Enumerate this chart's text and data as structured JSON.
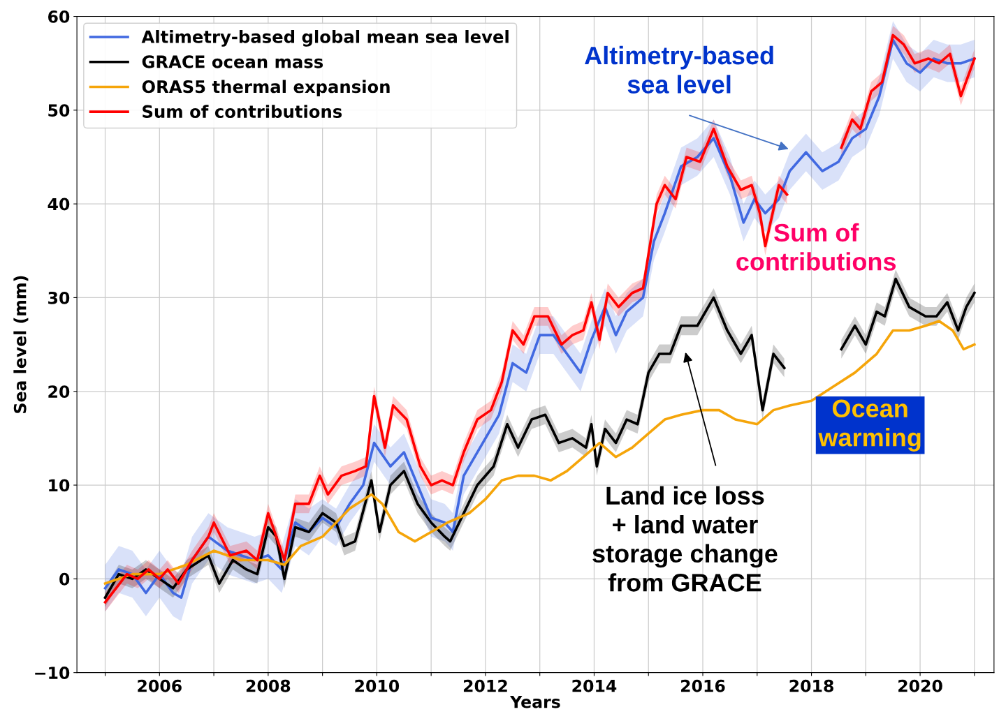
{
  "chart_data": {
    "type": "line",
    "xlabel": "Years",
    "ylabel": "Sea level (mm)",
    "xlim": [
      2004.48,
      2021.36
    ],
    "ylim": [
      -10,
      60
    ],
    "xticks": [
      {
        "value": 2005,
        "label": null
      },
      2006,
      {
        "value": 2007,
        "label": null
      },
      2008,
      {
        "value": 2009,
        "label": null
      },
      2010,
      {
        "value": 2011,
        "label": null
      },
      2012,
      {
        "value": 2013,
        "label": null
      },
      2014,
      {
        "value": 2015,
        "label": null
      },
      2016,
      {
        "value": 2017,
        "label": null
      },
      2018,
      {
        "value": 2019,
        "label": null
      },
      2020,
      {
        "value": 2021,
        "label": null
      }
    ],
    "yticks": [
      {
        "value": -10,
        "label": "−10"
      },
      0,
      10,
      20,
      30,
      40,
      50,
      60
    ],
    "grid": true,
    "legend": "top left",
    "marker": "none",
    "line_style": "solid",
    "series": [
      {
        "name": "Altimetry-based global mean sea level",
        "color": "#4169e1",
        "x": [
          2005.0,
          2005.25,
          2005.5,
          2005.75,
          2006.0,
          2006.25,
          2006.4,
          2006.6,
          2006.9,
          2007.25,
          2007.5,
          2007.75,
          2008.0,
          2008.25,
          2008.5,
          2008.75,
          2009.0,
          2009.25,
          2009.5,
          2009.75,
          2009.95,
          2010.25,
          2010.5,
          2010.75,
          2011.0,
          2011.25,
          2011.4,
          2011.6,
          2011.9,
          2012.25,
          2012.5,
          2012.75,
          2013.0,
          2013.25,
          2013.5,
          2013.75,
          2013.95,
          2014.2,
          2014.4,
          2014.6,
          2014.9,
          2015.1,
          2015.3,
          2015.6,
          2015.9,
          2016.2,
          2016.5,
          2016.75,
          2016.95,
          2017.15,
          2017.4,
          2017.6,
          2017.9,
          2018.2,
          2018.5,
          2018.75,
          2019.0,
          2019.25,
          2019.5,
          2019.75,
          2020.0,
          2020.25,
          2020.5,
          2020.75,
          2021.0
        ],
        "values": [
          -1,
          1,
          0.5,
          -1.5,
          0.5,
          -1.5,
          -2,
          2,
          4.5,
          3,
          2.5,
          2,
          2.5,
          1,
          6,
          5,
          6.5,
          5.5,
          8,
          10,
          14.5,
          12,
          13.5,
          10,
          6.5,
          6,
          5,
          11,
          14,
          17.5,
          23,
          22,
          26,
          26,
          24,
          22,
          25.5,
          29,
          26,
          28.5,
          30,
          36,
          39,
          44,
          45,
          47,
          43,
          38,
          40.5,
          39,
          40.5,
          43.5,
          45.5,
          43.5,
          44.5,
          47,
          48,
          51.5,
          57.5,
          55,
          54,
          55.5,
          55,
          55,
          55.5
        ],
        "lower": [
          -3.5,
          -1.5,
          -2,
          -4,
          -2,
          -4,
          -4.5,
          -0.5,
          2,
          0.5,
          0,
          -0.5,
          0,
          -1.5,
          3.5,
          2.5,
          4.5,
          3.5,
          6,
          8,
          12.5,
          10,
          11.5,
          8,
          4.5,
          4,
          3,
          9,
          12,
          15.5,
          21,
          20,
          24,
          24,
          22,
          20,
          23.5,
          27,
          24,
          26.5,
          28,
          34,
          37,
          42,
          43,
          45,
          41,
          36,
          38.5,
          37,
          38.5,
          41.5,
          43.5,
          41.5,
          42.5,
          45,
          46,
          49.5,
          55.5,
          53,
          52,
          53.5,
          53,
          53,
          53.5
        ],
        "upper": [
          1.5,
          3.5,
          3,
          1,
          3,
          1,
          0.5,
          4.5,
          7,
          5.5,
          5,
          4.5,
          5,
          3.5,
          8.5,
          7.5,
          8.5,
          7.5,
          10,
          12,
          16.5,
          14,
          15.5,
          12,
          8.5,
          8,
          7,
          13,
          16,
          19.5,
          25,
          24,
          28,
          28,
          26,
          24,
          27.5,
          31,
          28,
          30.5,
          32,
          38,
          41,
          46,
          47,
          49,
          45,
          40,
          42.5,
          41,
          42.5,
          45.5,
          47.5,
          45.5,
          46.5,
          49,
          50,
          53.5,
          59.5,
          57,
          56,
          57.5,
          57,
          57,
          57.5
        ]
      },
      {
        "name": "GRACE ocean mass",
        "color": "#000000",
        "x": [
          2005.0,
          2005.25,
          2005.5,
          2005.75,
          2006.0,
          2006.25,
          2006.5,
          2006.9,
          2007.1,
          2007.35,
          2007.6,
          2007.8,
          2008.0,
          2008.15,
          2008.3,
          2008.5,
          2008.75,
          2009.0,
          2009.25,
          2009.4,
          2009.6,
          2009.9,
          2010.05,
          2010.25,
          2010.5,
          2010.75,
          2011.0,
          2011.25,
          2011.35,
          2011.6,
          2011.85,
          2012.15,
          2012.4,
          2012.6,
          2012.85,
          2013.1,
          2013.35,
          2013.6,
          2013.85,
          2013.95,
          2014.05,
          2014.2,
          2014.4,
          2014.6,
          2014.8,
          2015.0,
          2015.2,
          2015.4,
          2015.6,
          2015.9,
          2016.2,
          2016.45,
          2016.7,
          2016.9,
          2017.1,
          2017.3,
          2017.5,
          2018.0,
          2018.55,
          2018.8,
          2019.0,
          2019.2,
          2019.35,
          2019.55,
          2019.8,
          2020.1,
          2020.3,
          2020.5,
          2020.7,
          2020.85,
          2021.0
        ],
        "values": [
          -2,
          0.5,
          0,
          1,
          0,
          -1,
          1,
          2.5,
          -0.5,
          2,
          1,
          0.5,
          5.5,
          4.5,
          0,
          5.5,
          5,
          7,
          6,
          3.5,
          4,
          10.5,
          5,
          10,
          11.5,
          8,
          6,
          4.5,
          4,
          7,
          10,
          12,
          16.5,
          14,
          17,
          17.5,
          14.5,
          15,
          14,
          16.5,
          12,
          16,
          14.5,
          17,
          16.5,
          22,
          24,
          24,
          27,
          27,
          30,
          26.5,
          24,
          26,
          18,
          24,
          22.5,
          null,
          24.5,
          27,
          25,
          28.5,
          28,
          32,
          29,
          28,
          28,
          29.5,
          26.5,
          29,
          30.5
        ],
        "lower": [
          -3,
          -0.5,
          -1,
          0,
          -1,
          -2,
          0,
          1.5,
          -1.5,
          1,
          0,
          -0.5,
          4.5,
          3.5,
          -1,
          4.5,
          4,
          6,
          5,
          2.5,
          3,
          9.5,
          4,
          9,
          10.5,
          7,
          5,
          3.5,
          3,
          6,
          9,
          11,
          15.5,
          13,
          16,
          16.5,
          13.5,
          14,
          13,
          15.5,
          11,
          15,
          13.5,
          16,
          15.5,
          21,
          23,
          23,
          26,
          26,
          29,
          25.5,
          23,
          25,
          17,
          23,
          21.5,
          null,
          23.5,
          26,
          24,
          27.5,
          27,
          31,
          28,
          27,
          27,
          28.5,
          25.5,
          28,
          29.5
        ],
        "upper": [
          -1,
          1.5,
          1,
          2,
          1,
          0,
          2,
          3.5,
          0.5,
          3,
          2,
          1.5,
          6.5,
          5.5,
          1,
          6.5,
          6,
          8,
          7,
          4.5,
          5,
          11.5,
          6,
          11,
          12.5,
          9,
          7,
          5.5,
          5,
          8,
          11,
          13,
          17.5,
          15,
          18,
          18.5,
          15.5,
          16,
          15,
          17.5,
          13,
          17,
          15.5,
          18,
          17.5,
          23,
          25,
          25,
          28,
          28,
          31,
          27.5,
          25,
          27,
          19,
          25,
          23.5,
          null,
          25.5,
          28,
          26,
          29.5,
          29,
          33,
          30,
          29,
          29,
          30.5,
          27.5,
          30,
          31.5
        ]
      },
      {
        "name": "ORAS5 thermal expansion",
        "color": "#f5a50a",
        "x": [
          2005.0,
          2005.5,
          2006.0,
          2006.5,
          2007.0,
          2007.5,
          2008.0,
          2008.3,
          2008.6,
          2009.0,
          2009.5,
          2009.9,
          2010.1,
          2010.4,
          2010.7,
          2011.0,
          2011.3,
          2011.7,
          2012.0,
          2012.3,
          2012.6,
          2012.9,
          2013.2,
          2013.5,
          2013.8,
          2014.1,
          2014.4,
          2014.7,
          2015.0,
          2015.3,
          2015.6,
          2016.0,
          2016.3,
          2016.6,
          2017.0,
          2017.3,
          2017.6,
          2018.0,
          2018.4,
          2018.8,
          2019.2,
          2019.5,
          2019.8,
          2020.1,
          2020.35,
          2020.6,
          2020.8,
          2021.0
        ],
        "values": [
          -0.5,
          0.5,
          0.5,
          1.5,
          3,
          2,
          2,
          1.5,
          3.5,
          4.5,
          7.5,
          9,
          8,
          5,
          4,
          5,
          6,
          7,
          8.5,
          10.5,
          11,
          11,
          10.5,
          11.5,
          13,
          14.5,
          13,
          14,
          15.5,
          17,
          17.5,
          18,
          18,
          17,
          16.5,
          18,
          18.5,
          19,
          20.5,
          22,
          24,
          26.5,
          26.5,
          27,
          27.5,
          26.5,
          24.5,
          25
        ]
      },
      {
        "name": "Sum of contributions",
        "color": "#ff0000",
        "x": [
          2005.0,
          2005.2,
          2005.4,
          2005.6,
          2005.8,
          2006.0,
          2006.15,
          2006.35,
          2006.6,
          2006.9,
          2007.0,
          2007.3,
          2007.6,
          2007.8,
          2008.0,
          2008.3,
          2008.5,
          2008.75,
          2008.95,
          2009.1,
          2009.35,
          2009.6,
          2009.8,
          2009.95,
          2010.15,
          2010.3,
          2010.55,
          2010.8,
          2011.0,
          2011.2,
          2011.4,
          2011.6,
          2011.85,
          2012.1,
          2012.3,
          2012.5,
          2012.7,
          2012.9,
          2013.15,
          2013.4,
          2013.6,
          2013.8,
          2013.95,
          2014.1,
          2014.25,
          2014.45,
          2014.7,
          2014.9,
          2015.15,
          2015.3,
          2015.5,
          2015.7,
          2015.95,
          2016.2,
          2016.45,
          2016.7,
          2016.9,
          2017.05,
          2017.15,
          2017.4,
          2017.55,
          2018.0,
          2018.55,
          2018.75,
          2018.9,
          2019.1,
          2019.3,
          2019.5,
          2019.7,
          2019.9,
          2020.15,
          2020.35,
          2020.55,
          2020.75,
          2021.0
        ],
        "values": [
          -2.5,
          -1,
          0.5,
          0,
          1,
          0,
          1,
          -0.5,
          2,
          4.5,
          6,
          2.5,
          3,
          2,
          7,
          2,
          8,
          8,
          11,
          9,
          11,
          11.5,
          12,
          19.5,
          14,
          18.5,
          17,
          12,
          10,
          10.5,
          10,
          13.5,
          17,
          18,
          21,
          26.5,
          25,
          28,
          28,
          25,
          26,
          26.5,
          29.5,
          25.5,
          30.5,
          29,
          30.5,
          31,
          40,
          42,
          40.5,
          45,
          44.5,
          48,
          44,
          41.5,
          42,
          39,
          35.5,
          42,
          41,
          null,
          46,
          49,
          48,
          52,
          53,
          58,
          57,
          55,
          55.5,
          55,
          56,
          51.5,
          55.5
        ],
        "lower": [
          -3.5,
          -2,
          -0.5,
          -1,
          0,
          -1,
          0,
          -1.5,
          1,
          3.5,
          5,
          1.5,
          2,
          1,
          6,
          1,
          7,
          7,
          10,
          8,
          10,
          10.5,
          11,
          18.5,
          13,
          17.5,
          16,
          11,
          9,
          9.5,
          9,
          12.5,
          16,
          17,
          20,
          25.5,
          24,
          27,
          27,
          24,
          25,
          25.5,
          28.5,
          24.5,
          29.5,
          28,
          29.5,
          30,
          39,
          41,
          39.5,
          44,
          43.5,
          47,
          43,
          40.5,
          41,
          38,
          34.5,
          41,
          40,
          null,
          45,
          48,
          47,
          51,
          52,
          57,
          56,
          54,
          54.5,
          54,
          55,
          50.5,
          54.5
        ],
        "upper": [
          -1.5,
          0,
          1.5,
          1,
          2,
          1,
          2,
          0.5,
          3,
          5.5,
          7,
          3.5,
          4,
          3,
          8,
          3,
          9,
          9,
          12,
          10,
          12,
          12.5,
          13,
          20.5,
          15,
          19.5,
          18,
          13,
          11,
          11.5,
          11,
          14.5,
          18,
          19,
          22,
          27.5,
          26,
          29,
          29,
          26,
          27,
          27.5,
          30.5,
          26.5,
          31.5,
          30,
          31.5,
          32,
          41,
          43,
          41.5,
          46,
          45.5,
          49,
          45,
          42.5,
          43,
          40,
          36.5,
          43,
          42,
          null,
          47,
          50,
          49,
          53,
          54,
          59,
          58,
          56,
          56.5,
          56,
          57,
          52.5,
          56.5
        ]
      }
    ],
    "annotations": [
      "Altimetry-based\nsea level",
      "Sum of\ncontributions",
      "Ocean\nwarming",
      "Land ice loss\n+ land water\nstorage change\nfrom GRACE"
    ]
  }
}
